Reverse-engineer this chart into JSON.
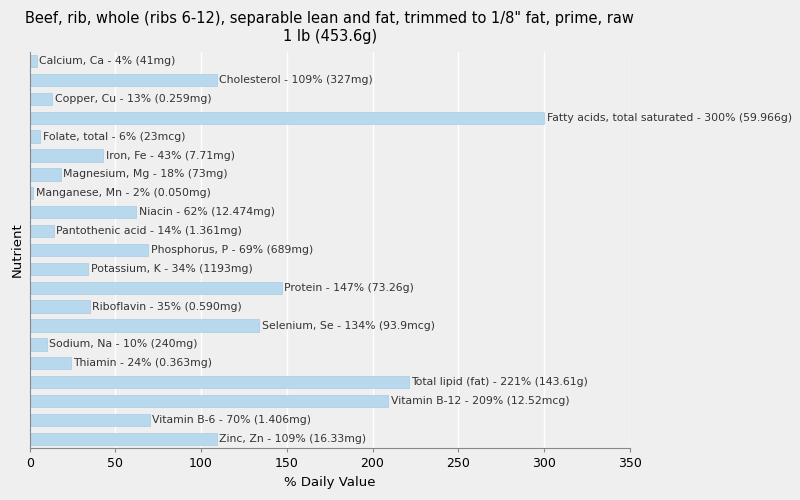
{
  "title": "Beef, rib, whole (ribs 6-12), separable lean and fat, trimmed to 1/8\" fat, prime, raw\n1 lb (453.6g)",
  "xlabel": "% Daily Value",
  "ylabel": "Nutrient",
  "background_color": "#efefef",
  "bar_color": "#b8d8ed",
  "bar_edge_color": "#a0c4de",
  "nutrients": [
    {
      "label": "Calcium, Ca - 4% (41mg)",
      "value": 4
    },
    {
      "label": "Cholesterol - 109% (327mg)",
      "value": 109
    },
    {
      "label": "Copper, Cu - 13% (0.259mg)",
      "value": 13
    },
    {
      "label": "Fatty acids, total saturated - 300% (59.966g)",
      "value": 300
    },
    {
      "label": "Folate, total - 6% (23mcg)",
      "value": 6
    },
    {
      "label": "Iron, Fe - 43% (7.71mg)",
      "value": 43
    },
    {
      "label": "Magnesium, Mg - 18% (73mg)",
      "value": 18
    },
    {
      "label": "Manganese, Mn - 2% (0.050mg)",
      "value": 2
    },
    {
      "label": "Niacin - 62% (12.474mg)",
      "value": 62
    },
    {
      "label": "Pantothenic acid - 14% (1.361mg)",
      "value": 14
    },
    {
      "label": "Phosphorus, P - 69% (689mg)",
      "value": 69
    },
    {
      "label": "Potassium, K - 34% (1193mg)",
      "value": 34
    },
    {
      "label": "Protein - 147% (73.26g)",
      "value": 147
    },
    {
      "label": "Riboflavin - 35% (0.590mg)",
      "value": 35
    },
    {
      "label": "Selenium, Se - 134% (93.9mcg)",
      "value": 134
    },
    {
      "label": "Sodium, Na - 10% (240mg)",
      "value": 10
    },
    {
      "label": "Thiamin - 24% (0.363mg)",
      "value": 24
    },
    {
      "label": "Total lipid (fat) - 221% (143.61g)",
      "value": 221
    },
    {
      "label": "Vitamin B-12 - 209% (12.52mcg)",
      "value": 209
    },
    {
      "label": "Vitamin B-6 - 70% (1.406mg)",
      "value": 70
    },
    {
      "label": "Zinc, Zn - 109% (16.33mg)",
      "value": 109
    }
  ],
  "xlim": [
    0,
    350
  ],
  "xticks": [
    0,
    50,
    100,
    150,
    200,
    250,
    300,
    350
  ],
  "title_fontsize": 10.5,
  "axis_label_fontsize": 9.5,
  "tick_fontsize": 9,
  "bar_label_fontsize": 7.8,
  "bar_height": 0.65
}
